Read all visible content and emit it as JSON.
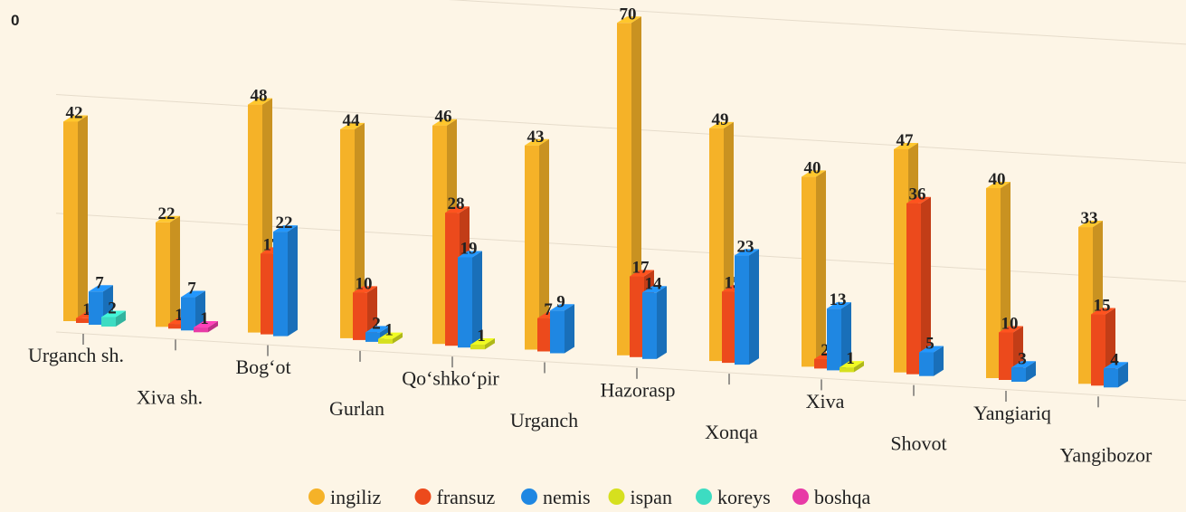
{
  "chart_data": {
    "type": "bar3d",
    "corner_label": "0",
    "categories": [
      "Urganch sh.",
      "Xiva sh.",
      "Bog‘ot",
      "Gurlan",
      "Qo‘shko‘pir",
      "Urganch",
      "Hazorasp",
      "Xonqa",
      "Xiva",
      "Shovot",
      "Yangiariq",
      "Yangibozor"
    ],
    "series": [
      {
        "name": "ingiliz",
        "color": "#f5b228",
        "values": [
          42,
          22,
          48,
          44,
          46,
          43,
          70,
          49,
          40,
          47,
          40,
          33
        ]
      },
      {
        "name": "fransuz",
        "color": "#ec4a1c",
        "values": [
          1,
          1,
          17,
          10,
          28,
          7,
          17,
          15,
          2,
          36,
          10,
          15
        ]
      },
      {
        "name": "nemis",
        "color": "#1f87e2",
        "values": [
          7,
          7,
          22,
          2,
          19,
          9,
          14,
          23,
          13,
          5,
          3,
          4
        ]
      },
      {
        "name": "ispan",
        "color": "#d6e01e",
        "values": [
          null,
          null,
          null,
          1,
          1,
          null,
          null,
          null,
          1,
          null,
          null,
          null
        ]
      },
      {
        "name": "koreys",
        "color": "#3ddcc2",
        "values": [
          2,
          null,
          null,
          null,
          null,
          null,
          null,
          null,
          null,
          null,
          null,
          null
        ]
      },
      {
        "name": "boshqa",
        "color": "#e83aa6",
        "values": [
          null,
          1,
          null,
          null,
          null,
          null,
          null,
          null,
          null,
          null,
          null,
          null
        ]
      }
    ],
    "ylim": [
      0,
      80
    ],
    "grid_values": [
      0,
      25,
      50,
      75
    ],
    "grid": true
  }
}
